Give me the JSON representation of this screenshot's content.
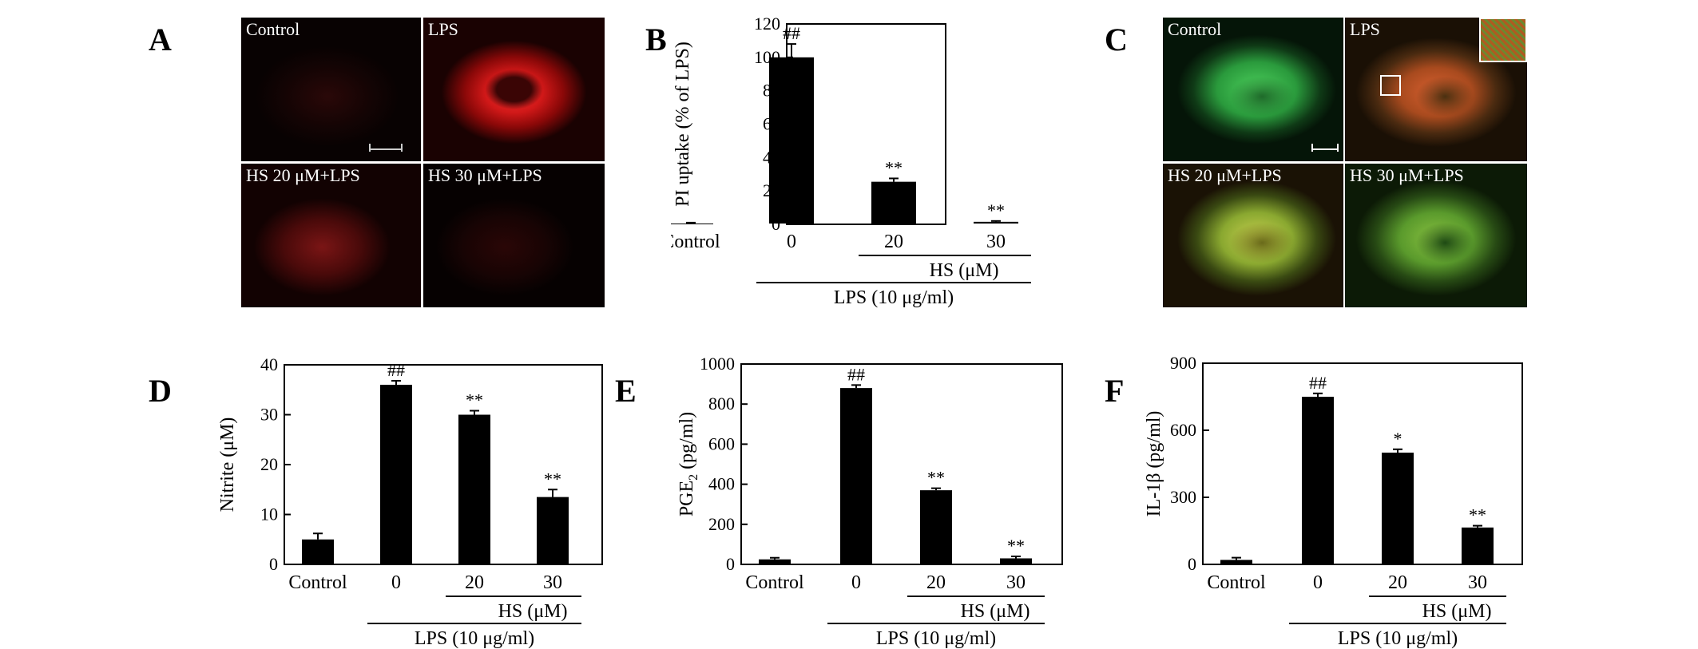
{
  "panels": {
    "A": {
      "label": "A",
      "images": [
        {
          "label": "Control",
          "fluorescence": "faint-red"
        },
        {
          "label": "LPS",
          "fluorescence": "bright-red-ring"
        },
        {
          "label": "HS 20 μM+LPS",
          "fluorescence": "dim-red"
        },
        {
          "label": "HS 30 μM+LPS",
          "fluorescence": "very-faint-red"
        }
      ]
    },
    "C": {
      "label": "C",
      "images": [
        {
          "label": "Control",
          "fluorescence": "green"
        },
        {
          "label": "LPS",
          "fluorescence": "red-green"
        },
        {
          "label": "HS 20 μM+LPS",
          "fluorescence": "green-yellow"
        },
        {
          "label": "HS 30 μM+LPS",
          "fluorescence": "green-yellow"
        }
      ]
    }
  },
  "chart_data": [
    {
      "panel": "B",
      "type": "bar",
      "categories": [
        "Control",
        "0",
        "20",
        "30"
      ],
      "values": [
        0.5,
        100,
        25.5,
        1.5
      ],
      "errors": [
        0.5,
        8,
        2,
        0.5
      ],
      "annotations": [
        "",
        "##",
        "**",
        "**"
      ],
      "ylabel": "PI uptake (% of LPS)",
      "ylim": [
        0,
        120
      ],
      "yticks": [
        "0",
        "20",
        "40",
        "60",
        "80",
        "100",
        "120"
      ],
      "group_labels": {
        "hs": "HS (μM)",
        "lps": "LPS (10 μg/ml)"
      }
    },
    {
      "panel": "D",
      "type": "bar",
      "categories": [
        "Control",
        "0",
        "20",
        "30"
      ],
      "values": [
        5,
        36,
        30,
        13.5
      ],
      "errors": [
        1.2,
        0.8,
        0.8,
        1.5
      ],
      "annotations": [
        "",
        "##",
        "**",
        "**"
      ],
      "ylabel": "Nitrite (μM)",
      "ylim": [
        0,
        40
      ],
      "yticks": [
        "0",
        "10",
        "20",
        "30",
        "40"
      ],
      "group_labels": {
        "hs": "HS (μM)",
        "lps": "LPS (10 μg/ml)"
      }
    },
    {
      "panel": "E",
      "type": "bar",
      "categories": [
        "Control",
        "0",
        "20",
        "30"
      ],
      "values": [
        25,
        880,
        370,
        30
      ],
      "errors": [
        8,
        15,
        10,
        10
      ],
      "annotations": [
        "",
        "##",
        "**",
        "**"
      ],
      "ylabel": "PGE2 (pg/ml)",
      "ylim": [
        0,
        1000
      ],
      "yticks": [
        "0",
        "200",
        "400",
        "600",
        "800",
        "1000"
      ],
      "group_labels": {
        "hs": "HS (μM)",
        "lps": "LPS (10 μg/ml)"
      }
    },
    {
      "panel": "F",
      "type": "bar",
      "categories": [
        "Control",
        "0",
        "20",
        "30"
      ],
      "values": [
        20,
        750,
        500,
        165
      ],
      "errors": [
        10,
        15,
        15,
        8
      ],
      "annotations": [
        "",
        "##",
        "*",
        "**"
      ],
      "ylabel": "IL-1β (pg/ml)",
      "ylim": [
        0,
        900
      ],
      "yticks": [
        "0",
        "300",
        "600",
        "900"
      ],
      "group_labels": {
        "hs": "HS (μM)",
        "lps": "LPS (10 μg/ml)"
      }
    }
  ]
}
